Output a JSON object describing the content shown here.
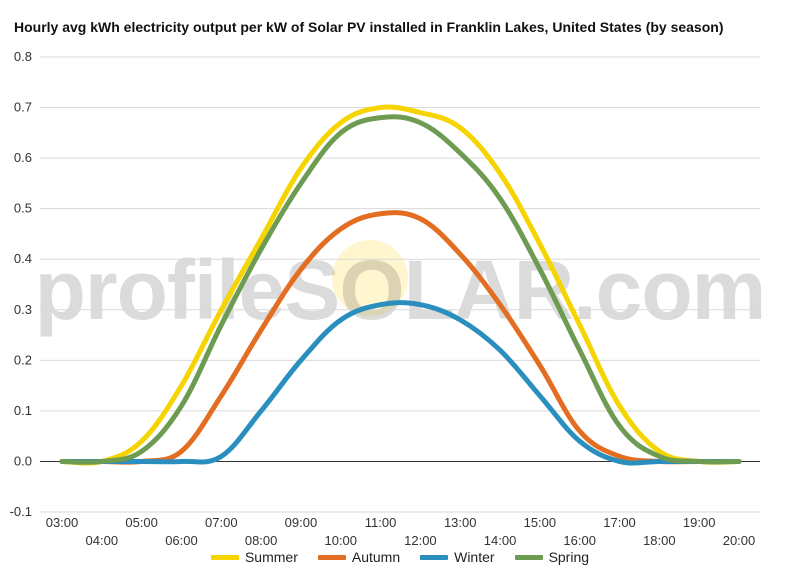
{
  "title": "Hourly avg kWh electricity output per kW of Solar PV installed in Franklin Lakes, United States (by season)",
  "watermark": "profileSOLAR.com",
  "chart_data": {
    "type": "line",
    "title": "Hourly avg kWh electricity output per kW of Solar PV installed in Franklin Lakes, United States (by season)",
    "x": [
      "03:00",
      "04:00",
      "05:00",
      "06:00",
      "07:00",
      "08:00",
      "09:00",
      "10:00",
      "11:00",
      "12:00",
      "13:00",
      "14:00",
      "15:00",
      "16:00",
      "17:00",
      "18:00",
      "19:00",
      "20:00"
    ],
    "ylim": [
      -0.1,
      0.8
    ],
    "yticks": [
      "-0.1",
      "0.0",
      "0.1",
      "0.2",
      "0.3",
      "0.4",
      "0.5",
      "0.6",
      "0.7",
      "0.8"
    ],
    "grid": true,
    "legend_position": "bottom",
    "series": [
      {
        "name": "Summer",
        "color": "#f5d400",
        "values": [
          0.0,
          0.0,
          0.04,
          0.15,
          0.3,
          0.44,
          0.58,
          0.67,
          0.7,
          0.69,
          0.66,
          0.57,
          0.43,
          0.27,
          0.11,
          0.02,
          0.0,
          0.0
        ]
      },
      {
        "name": "Autumn",
        "color": "#e36e22",
        "values": [
          0.0,
          0.0,
          0.0,
          0.02,
          0.13,
          0.26,
          0.38,
          0.46,
          0.49,
          0.48,
          0.41,
          0.31,
          0.19,
          0.06,
          0.01,
          0.0,
          0.0,
          0.0
        ]
      },
      {
        "name": "Winter",
        "color": "#2a8fbf",
        "values": [
          0.0,
          0.0,
          0.0,
          0.0,
          0.01,
          0.1,
          0.2,
          0.28,
          0.31,
          0.31,
          0.28,
          0.22,
          0.13,
          0.04,
          0.0,
          0.0,
          0.0,
          0.0
        ]
      },
      {
        "name": "Spring",
        "color": "#6e9b52",
        "values": [
          0.0,
          0.0,
          0.02,
          0.11,
          0.27,
          0.42,
          0.55,
          0.65,
          0.68,
          0.67,
          0.61,
          0.52,
          0.38,
          0.22,
          0.07,
          0.01,
          0.0,
          0.0
        ]
      }
    ]
  }
}
